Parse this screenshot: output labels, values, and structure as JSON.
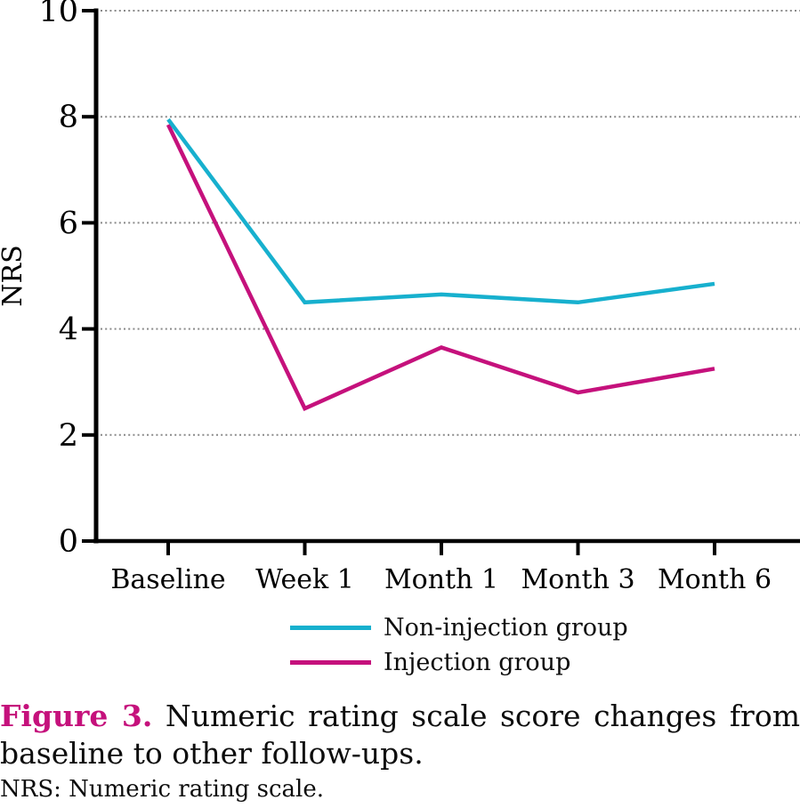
{
  "figure": {
    "caption_label": "Figure 3.",
    "caption_line1": "Numeric rating scale score changes from",
    "caption_line2": "baseline to other follow-ups.",
    "footnote": "NRS: Numeric rating scale."
  },
  "colors": {
    "non_injection": "#17B0CE",
    "injection": "#C5117C",
    "caption_label": "#C5117C",
    "axis": "#000000",
    "gridline": "#8a8a8a"
  },
  "chart_data": {
    "type": "line",
    "title": "",
    "xlabel": "",
    "ylabel": "NRS",
    "categories": [
      "Baseline",
      "Week 1",
      "Month 1",
      "Month 3",
      "Month 6"
    ],
    "series": [
      {
        "name": "Non-injection group",
        "color": "#17B0CE",
        "values": [
          7.95,
          4.5,
          4.65,
          4.5,
          4.85
        ]
      },
      {
        "name": "Injection group",
        "color": "#C5117C",
        "values": [
          7.85,
          2.5,
          3.65,
          2.8,
          3.25
        ]
      }
    ],
    "ylim": [
      0,
      10
    ],
    "yticks": [
      0,
      2,
      4,
      6,
      8,
      10
    ],
    "grid": "horizontal-dotted",
    "legend_position": "bottom-center"
  }
}
